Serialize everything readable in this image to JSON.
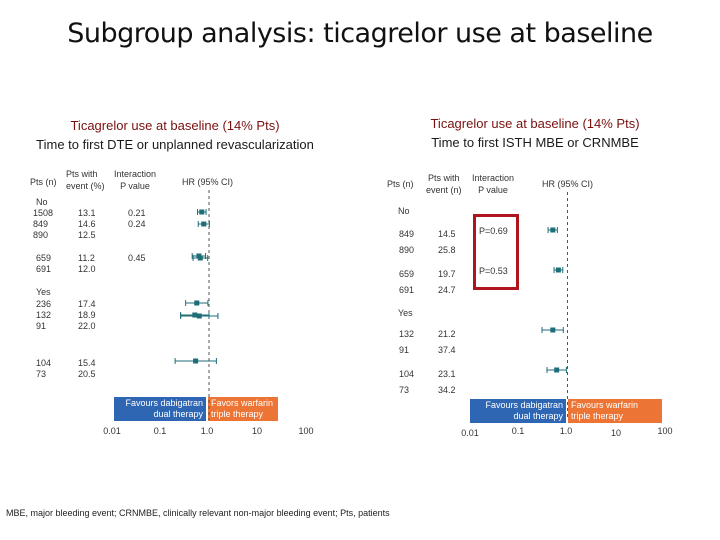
{
  "title": "Subgroup analysis: ticagrelor use at baseline",
  "footnote": "MBE, major bleeding event; CRNMBE, clinically relevant non-major bleeding event; Pts, patients",
  "colors": {
    "marker": "#1e6e78",
    "dashed": "#555555",
    "left_legend": "#2e66b4",
    "right_legend": "#ec7434",
    "box": "#b0141c"
  },
  "left": {
    "title1": "Ticagrelor use at baseline (14% Pts)",
    "title2": "Time to first DTE or unplanned revascularization",
    "hdr_pts": "Pts (n)",
    "hdr_event": "Pts with\nevent (%)",
    "hdr_interaction": "Interaction\nP value",
    "hdr_hr": "HR (95% CI)",
    "group_no": "No",
    "group_yes": "Yes",
    "rows": [
      {
        "pts": "1508\n849\n890",
        "event": "13.1\n14.6\n12.5",
        "p": "0.21\n0.24"
      },
      {
        "pts": "659\n691",
        "event": "11.2\n12.0",
        "p": "0.45"
      },
      {
        "pts": "236\n132\n91",
        "event": "17.4\n18.9\n22.0",
        "p": ""
      },
      {
        "pts": "104\n73",
        "event": "15.4\n20.5",
        "p": ""
      }
    ],
    "legend_left": "Favours dabigatran\ndual therapy",
    "legend_right": "Favors warfarin\ntriple therapy",
    "ticks": [
      "0.01",
      "0.1",
      "1.0",
      "10",
      "100"
    ]
  },
  "right": {
    "title1": "Ticagrelor use at baseline (14% Pts)",
    "title2": "Time to first ISTH MBE or CRNMBE",
    "hdr_pts": "Pts (n)",
    "hdr_event": "Pts with\nevent (n)",
    "hdr_interaction": "Interaction\nP value",
    "hdr_hr": "HR (95% CI)",
    "group_no": "No",
    "group_yes": "Yes",
    "rows": [
      {
        "pts": "849\n890",
        "event": "14.5\n25.8",
        "p": "P=0.69"
      },
      {
        "pts": "659\n691",
        "event": "19.7\n24.7",
        "p": "P=0.53"
      },
      {
        "pts": "132\n91",
        "event": "21.2\n37.4",
        "p": ""
      },
      {
        "pts": "104\n73",
        "event": "23.1\n34.2",
        "p": ""
      }
    ],
    "legend_left": "Favours dabigatran\ndual therapy",
    "legend_right": "Favours warfarin\ntriple therapy",
    "ticks": [
      "0.01",
      "0.1",
      "1.0",
      "10",
      "100"
    ]
  },
  "chart_data": [
    {
      "type": "scatter",
      "title": "Time to first DTE or unplanned revascularization",
      "xlabel": "HR (95% CI)",
      "x_scale": "log",
      "xlim": [
        0.01,
        100
      ],
      "reference_line": 1.0,
      "legend": [
        "Favours dabigatran dual therapy",
        "Favors warfarin triple therapy"
      ],
      "points": [
        {
          "hr": 0.71,
          "lo": 0.58,
          "hi": 0.87
        },
        {
          "hr": 0.78,
          "lo": 0.6,
          "hi": 1.02
        },
        {
          "hr": 0.62,
          "lo": 0.45,
          "hi": 0.85
        },
        {
          "hr": 0.66,
          "lo": 0.47,
          "hi": 0.94
        },
        {
          "hr": 0.56,
          "lo": 0.33,
          "hi": 0.95
        },
        {
          "hr": 0.51,
          "lo": 0.26,
          "hi": 1.0
        },
        {
          "hr": 0.63,
          "lo": 0.26,
          "hi": 1.53
        },
        {
          "hr": 0.53,
          "lo": 0.2,
          "hi": 1.42
        }
      ]
    },
    {
      "type": "scatter",
      "title": "Time to first ISTH MBE or CRNMBE",
      "xlabel": "HR (95% CI)",
      "x_scale": "log",
      "xlim": [
        0.01,
        100
      ],
      "reference_line": 1.0,
      "legend": [
        "Favours dabigatran dual therapy",
        "Favours warfarin triple therapy"
      ],
      "points": [
        {
          "hr": 0.5,
          "lo": 0.4,
          "hi": 0.62
        },
        {
          "hr": 0.65,
          "lo": 0.53,
          "hi": 0.8
        },
        {
          "hr": 0.5,
          "lo": 0.3,
          "hi": 0.82
        },
        {
          "hr": 0.6,
          "lo": 0.38,
          "hi": 0.95
        }
      ]
    }
  ]
}
